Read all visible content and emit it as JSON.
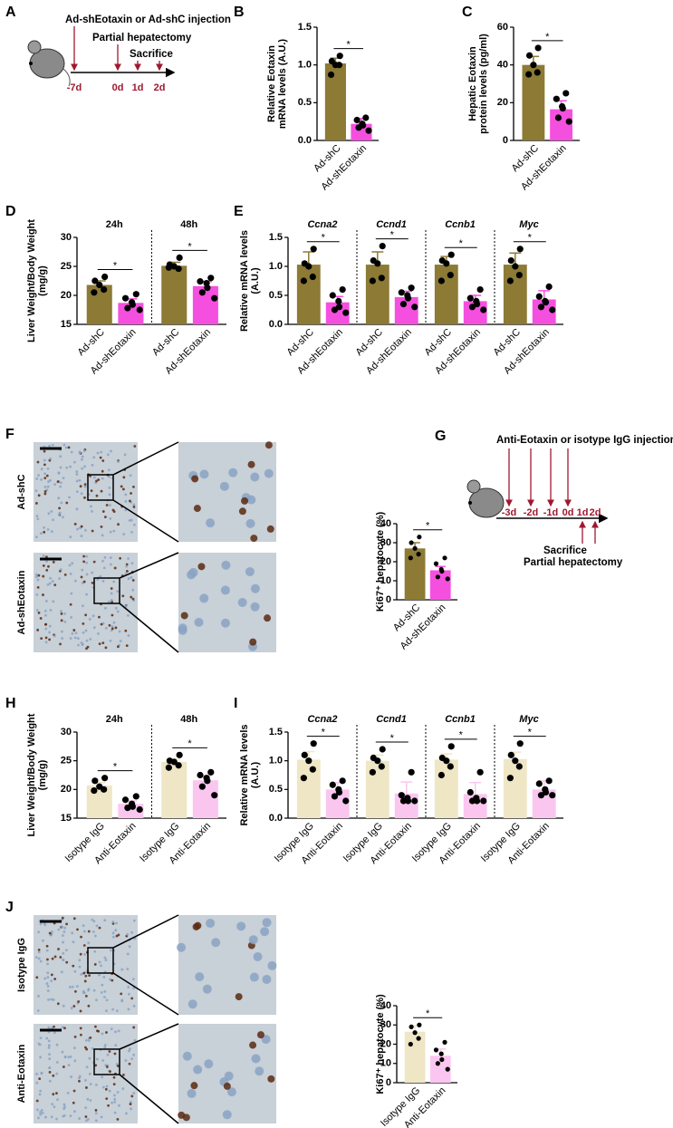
{
  "chart_data": [
    {
      "type": "bar",
      "panel": "B",
      "ylabel": [
        "Relative Eotaxin",
        "mRNA levels (A.U.)"
      ],
      "ylim": [
        0,
        1.5
      ],
      "yticks": [
        {
          "value": 0,
          "label": "0.0"
        },
        0.5,
        {
          "value": 1,
          "label": "1.0"
        },
        1.5
      ],
      "colors": [
        "#8c7a35",
        "#f54fe0"
      ],
      "groups": [
        {
          "categories": [
            "Ad-shC",
            "Ad-shEotaxin"
          ],
          "values": [
            1.02,
            0.22
          ],
          "errors": [
            0.07,
            0.07
          ],
          "points": [
            [
              1.12,
              1.05,
              1.0,
              1.0,
              0.87
            ],
            [
              0.3,
              0.27,
              0.22,
              0.2,
              0.17,
              0.13
            ]
          ],
          "significance": "*"
        }
      ]
    },
    {
      "type": "bar",
      "panel": "C",
      "ylabel": [
        "Hepatic Eotaxin",
        "protein levels (pg/ml)"
      ],
      "ylim": [
        0,
        60
      ],
      "yticks": [
        0,
        20,
        40,
        60
      ],
      "colors": [
        "#8c7a35",
        "#f54fe0"
      ],
      "groups": [
        {
          "categories": [
            "Ad-shC",
            "Ad-shEotaxin"
          ],
          "values": [
            40,
            16.5
          ],
          "errors": [
            4.5,
            4.5
          ],
          "points": [
            [
              49,
              45,
              40,
              36,
              35
            ],
            [
              25,
              22,
              18,
              17,
              12,
              10
            ]
          ],
          "significance": "*"
        }
      ]
    },
    {
      "type": "bar",
      "panel": "D",
      "ylabel": [
        "Liver Weight/Body Weight",
        "(mg/g)"
      ],
      "ylim": [
        15,
        30
      ],
      "yticks": [
        15,
        20,
        25,
        30
      ],
      "colors": [
        "#8c7a35",
        "#f54fe0"
      ],
      "groups": [
        {
          "title": "24h",
          "categories": [
            "Ad-shC",
            "Ad-shEotaxin"
          ],
          "values": [
            21.8,
            18.7
          ],
          "errors": [
            0.7,
            0.7
          ],
          "points": [
            [
              23.2,
              22.5,
              21.8,
              21,
              20.5
            ],
            [
              20.2,
              19.5,
              18.8,
              18.4,
              17.8,
              17.5
            ]
          ],
          "significance": "*"
        },
        {
          "title": "48h",
          "categories": [
            "Ad-shC",
            "Ad-shEotaxin"
          ],
          "values": [
            25.1,
            21.6
          ],
          "errors": [
            0.6,
            0.8
          ],
          "points": [
            [
              26.5,
              25.3,
              25,
              24.6,
              24.8
            ],
            [
              23,
              22.4,
              22.1,
              21.3,
              20.5,
              19.5
            ]
          ],
          "significance": "*"
        }
      ]
    },
    {
      "type": "bar",
      "panel": "E",
      "ylabel": [
        "Relative mRNA levels",
        "(A.U.)"
      ],
      "ylim": [
        0,
        1.5
      ],
      "title_italic": true,
      "yticks": [
        {
          "value": 0,
          "label": "0.0"
        },
        0.5,
        {
          "value": 1,
          "label": "1.0"
        },
        1.5
      ],
      "colors": [
        "#8c7a35",
        "#f54fe0"
      ],
      "groups": [
        {
          "title": "Ccna2",
          "categories": [
            "Ad-shC",
            "Ad-shEotaxin"
          ],
          "values": [
            1.03,
            0.38
          ],
          "errors": [
            0.22,
            0.1
          ],
          "points": [
            [
              1.3,
              1.05,
              1.0,
              0.82,
              0.75
            ],
            [
              0.6,
              0.5,
              0.4,
              0.3,
              0.25,
              0.2
            ]
          ],
          "significance": "*"
        },
        {
          "title": "Ccnd1",
          "categories": [
            "Ad-shC",
            "Ad-shEotaxin"
          ],
          "values": [
            1.03,
            0.47
          ],
          "errors": [
            0.22,
            0.1
          ],
          "points": [
            [
              1.35,
              1.1,
              1.05,
              0.8,
              0.75
            ],
            [
              0.63,
              0.55,
              0.5,
              0.45,
              0.35,
              0.3
            ]
          ],
          "significance": "*"
        },
        {
          "title": "Ccnb1",
          "categories": [
            "Ad-shC",
            "Ad-shEotaxin"
          ],
          "values": [
            1.03,
            0.4
          ],
          "errors": [
            0.14,
            0.1
          ],
          "points": [
            [
              1.2,
              1.1,
              1.05,
              0.85,
              0.75
            ],
            [
              0.6,
              0.45,
              0.4,
              0.35,
              0.3,
              0.25
            ]
          ],
          "significance": "*"
        },
        {
          "title": "Myc",
          "categories": [
            "Ad-shC",
            "Ad-shEotaxin"
          ],
          "values": [
            1.03,
            0.43
          ],
          "errors": [
            0.2,
            0.15
          ],
          "points": [
            [
              1.3,
              1.1,
              1.0,
              0.85,
              0.75
            ],
            [
              0.65,
              0.48,
              0.4,
              0.38,
              0.3,
              0.25
            ]
          ],
          "significance": "*"
        }
      ]
    },
    {
      "type": "bar",
      "panel": "",
      "ylabel": [
        "Ki67⁺ hepatocyte (%)"
      ],
      "ylim": [
        0,
        40
      ],
      "small": true,
      "yticks": [
        0,
        10,
        20,
        30,
        40
      ],
      "colors": [
        "#8c7a35",
        "#f54fe0"
      ],
      "groups": [
        {
          "categories": [
            "Ad-shC",
            "Ad-shEotaxin"
          ],
          "values": [
            27,
            15.5
          ],
          "errors": [
            3,
            2
          ],
          "points": [
            [
              33,
              30,
              27,
              24,
              22
            ],
            [
              22,
              19,
              16,
              15,
              12,
              11
            ]
          ],
          "significance": "*"
        }
      ]
    },
    {
      "type": "bar",
      "panel": "H",
      "ylabel": [
        "Liver Weight/Body Weight",
        "(mg/g)"
      ],
      "ylim": [
        15,
        30
      ],
      "yticks": [
        15,
        20,
        25,
        30
      ],
      "colors": [
        "#efe6c6",
        "#fac6ef"
      ],
      "groups": [
        {
          "title": "24h",
          "categories": [
            "Isotype IgG",
            "Anti-Eotaxin"
          ],
          "values": [
            20.7,
            17.5
          ],
          "errors": [
            0.5,
            0.5
          ],
          "points": [
            [
              22,
              21.5,
              20.5,
              20,
              19.8
            ],
            [
              18.8,
              18.2,
              17.5,
              17,
              16.8,
              16.5
            ]
          ],
          "significance": "*"
        },
        {
          "title": "48h",
          "categories": [
            "Isotype IgG",
            "Anti-Eotaxin"
          ],
          "values": [
            24.8,
            21.6
          ],
          "errors": [
            0.5,
            0.8
          ],
          "points": [
            [
              26,
              25,
              24.8,
              24.2,
              23.8
            ],
            [
              23,
              22.5,
              22,
              21.5,
              20.5,
              19
            ]
          ],
          "significance": "*"
        }
      ]
    },
    {
      "type": "bar",
      "panel": "I",
      "ylabel": [
        "Relative mRNA levels",
        "(A.U.)"
      ],
      "ylim": [
        0,
        1.5
      ],
      "title_italic": true,
      "yticks": [
        {
          "value": 0,
          "label": "0.0"
        },
        0.5,
        {
          "value": 1,
          "label": "1.0"
        },
        1.5
      ],
      "colors": [
        "#efe6c6",
        "#fac6ef"
      ],
      "groups": [
        {
          "title": "Ccna2",
          "categories": [
            "Isotype IgG",
            "Anti-Eotaxin"
          ],
          "values": [
            1.02,
            0.5
          ],
          "errors": [
            0.14,
            0.12
          ],
          "points": [
            [
              1.3,
              1.1,
              1.0,
              0.85,
              0.7
            ],
            [
              0.65,
              0.58,
              0.5,
              0.45,
              0.38,
              0.3
            ]
          ],
          "significance": "*"
        },
        {
          "title": "Ccnd1",
          "categories": [
            "Isotype IgG",
            "Anti-Eotaxin"
          ],
          "values": [
            1.0,
            0.43
          ],
          "errors": [
            0.1,
            0.2
          ],
          "points": [
            [
              1.2,
              1.05,
              1.0,
              0.9,
              0.8
            ],
            [
              0.8,
              0.4,
              0.35,
              0.3,
              0.3,
              0.3
            ]
          ],
          "significance": "*"
        },
        {
          "title": "Ccnb1",
          "categories": [
            "Isotype IgG",
            "Anti-Eotaxin"
          ],
          "values": [
            1.02,
            0.42
          ],
          "errors": [
            0.1,
            0.2
          ],
          "points": [
            [
              1.25,
              1.05,
              1.0,
              0.9,
              0.75
            ],
            [
              0.8,
              0.45,
              0.35,
              0.3,
              0.3,
              0.3
            ]
          ],
          "significance": "*"
        },
        {
          "title": "Myc",
          "categories": [
            "Isotype IgG",
            "Anti-Eotaxin"
          ],
          "values": [
            1.03,
            0.5
          ],
          "errors": [
            0.12,
            0.15
          ],
          "points": [
            [
              1.3,
              1.1,
              1.0,
              0.9,
              0.7
            ],
            [
              0.65,
              0.6,
              0.5,
              0.45,
              0.4,
              0.4
            ]
          ],
          "significance": "*"
        }
      ]
    },
    {
      "type": "bar",
      "panel": "",
      "ylabel": [
        "Ki67⁺ hepatocyte (%)"
      ],
      "ylim": [
        0,
        40
      ],
      "small": true,
      "yticks": [
        0,
        10,
        20,
        30,
        40
      ],
      "colors": [
        "#efe6c6",
        "#fac6ef"
      ],
      "groups": [
        {
          "categories": [
            "Isotype IgG",
            "Anti-Eotaxin"
          ],
          "values": [
            26.5,
            14
          ],
          "errors": [
            3,
            3.5
          ],
          "points": [
            [
              30,
              29,
              26,
              23,
              20
            ],
            [
              21,
              17,
              15,
              12,
              10,
              7
            ]
          ],
          "significance": "*"
        }
      ]
    }
  ],
  "timelines": [
    {
      "panel": "A",
      "texts": [
        "Ad-shEotaxin or Ad-shC injection",
        "Partial hepatectomy",
        "Sacrifice"
      ],
      "ticks": [
        "-7d",
        "0d",
        "1d",
        "2d"
      ]
    },
    {
      "panel": "G",
      "texts": [
        "Anti-Eotaxin or isotype IgG injection",
        "Sacrifice",
        "Partial hepatectomy"
      ],
      "ticks": [
        "-3d",
        "-2d",
        "-1d",
        "0d",
        "1d",
        "2d"
      ]
    }
  ],
  "image_panels": [
    {
      "panel": "F",
      "rows": [
        "Ad-shC",
        "Ad-shEotaxin"
      ]
    },
    {
      "panel": "J",
      "rows": [
        "Isotype IgG",
        "Anti-Eotaxin"
      ]
    }
  ]
}
